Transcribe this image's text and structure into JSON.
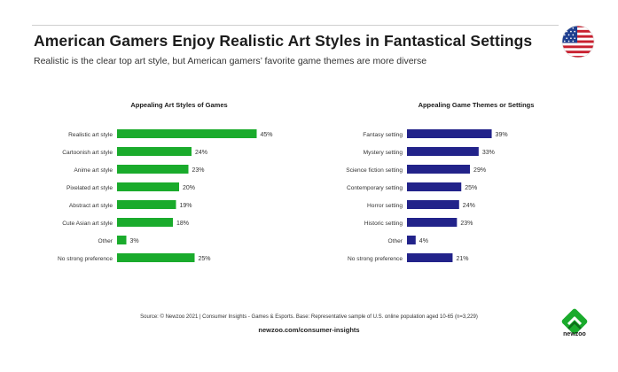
{
  "header": {
    "title": "American Gamers Enjoy Realistic Art Styles in Fantastical Settings",
    "subtitle": "Realistic is the clear top art style, but American gamers’ favorite game themes are more diverse"
  },
  "colors": {
    "green": "#1aab2c",
    "navy": "#22238a",
    "flag_red": "#c8202f",
    "flag_blue": "#1f3f8f"
  },
  "chart_data": [
    {
      "type": "bar",
      "orientation": "horizontal",
      "title": "Appealing Art Styles of Games",
      "categories": [
        "Realistic art style",
        "Cartoonish art style",
        "Anime art style",
        "Pixelated art style",
        "Abstract art style",
        "Cute Asian art style",
        "Other",
        "No strong preference"
      ],
      "values": [
        45,
        24,
        23,
        20,
        19,
        18,
        3,
        25
      ],
      "value_labels": [
        "45%",
        "24%",
        "23%",
        "20%",
        "19%",
        "18%",
        "3%",
        "25%"
      ],
      "unit": "%",
      "color": "#1aab2c"
    },
    {
      "type": "bar",
      "orientation": "horizontal",
      "title": "Appealing Game Themes or Settings",
      "categories": [
        "Fantasy setting",
        "Mystery setting",
        "Science fiction setting",
        "Contemporary setting",
        "Horror setting",
        "Historic setting",
        "Other",
        "No strong preference"
      ],
      "values": [
        39,
        33,
        29,
        25,
        24,
        23,
        4,
        21
      ],
      "value_labels": [
        "39%",
        "33%",
        "29%",
        "25%",
        "24%",
        "23%",
        "4%",
        "21%"
      ],
      "unit": "%",
      "color": "#22238a"
    }
  ],
  "footer": {
    "source": "Source: © Newzoo 2021 | Consumer Insights - Games & Esports. Base: Representative sample of U.S. online population aged 10-65 (n=3,229)",
    "url": "newzoo.com/consumer-insights"
  },
  "brand": {
    "logo_text": "newzoo"
  }
}
